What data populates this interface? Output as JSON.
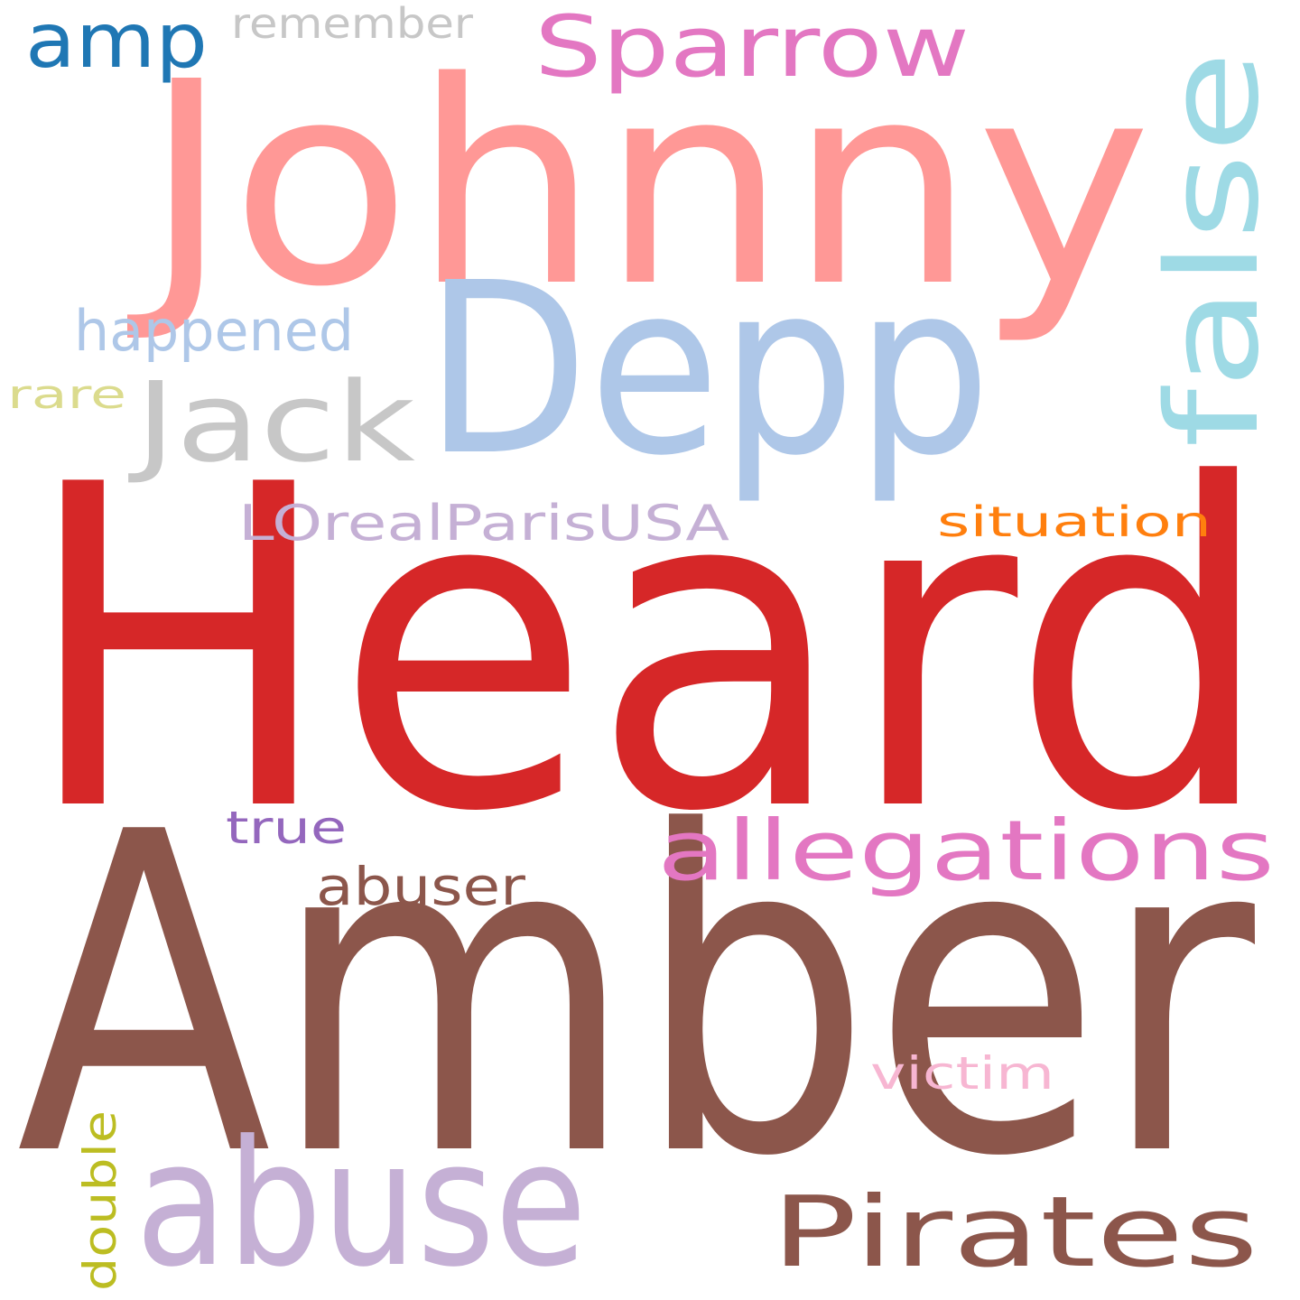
{
  "words": [
    {
      "text": "Heard",
      "color": "#d62728",
      "rotated": false
    },
    {
      "text": "Amber",
      "color": "#8c564b",
      "rotated": false
    },
    {
      "text": "Johnny",
      "color": "#ff9896",
      "rotated": false
    },
    {
      "text": "Depp",
      "color": "#aec7e8",
      "rotated": false
    },
    {
      "text": "abuse",
      "color": "#c5b0d5",
      "rotated": false
    },
    {
      "text": "Jack",
      "color": "#c7c7c7",
      "rotated": false
    },
    {
      "text": "false",
      "color": "#9edae5",
      "rotated": true
    },
    {
      "text": "Pirates",
      "color": "#8c564b",
      "rotated": false
    },
    {
      "text": "Sparrow",
      "color": "#e377c2",
      "rotated": false
    },
    {
      "text": "allegations",
      "color": "#e377c2",
      "rotated": false
    },
    {
      "text": "amp",
      "color": "#1f77b4",
      "rotated": false
    },
    {
      "text": "happened",
      "color": "#aec7e8",
      "rotated": false
    },
    {
      "text": "LOrealParisUSA",
      "color": "#c5b0d5",
      "rotated": false
    },
    {
      "text": "situation",
      "color": "#ff7f0e",
      "rotated": false
    },
    {
      "text": "abuser",
      "color": "#8c564b",
      "rotated": false
    },
    {
      "text": "double",
      "color": "#bcbd22",
      "rotated": true
    },
    {
      "text": "victim",
      "color": "#f7b6d2",
      "rotated": false
    },
    {
      "text": "true",
      "color": "#9467bd",
      "rotated": false
    },
    {
      "text": "remember",
      "color": "#c7c7c7",
      "rotated": false
    },
    {
      "text": "rare",
      "color": "#dbdb8d",
      "rotated": false
    }
  ]
}
